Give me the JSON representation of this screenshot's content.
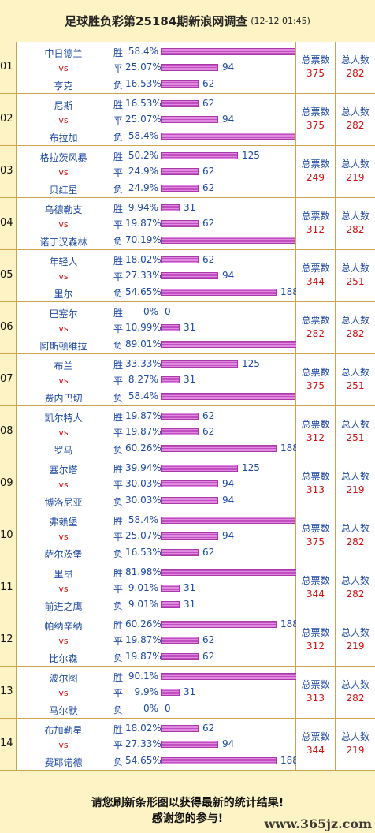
{
  "header": {
    "title": "足球胜负彩第25184期新浪网调查",
    "date": "(12-12 01:45)"
  },
  "labels": {
    "win": "胜",
    "draw": "平",
    "lose": "负",
    "vs": "vs",
    "votes": "总票数",
    "people": "总人数"
  },
  "colors": {
    "bar": "#c04ec0",
    "team": "#1f4aa3",
    "vs": "#d21010",
    "background": "#fdf3c4"
  },
  "matches": [
    {
      "idx": "01",
      "home": "中日德兰",
      "away": "亨克",
      "win": {
        "pct": "58.4%",
        "n": 219
      },
      "draw": {
        "pct": "25.07%",
        "n": 94
      },
      "lose": {
        "pct": "16.53%",
        "n": 62
      },
      "votes": "375",
      "people": "282"
    },
    {
      "idx": "02",
      "home": "尼斯",
      "away": "布拉加",
      "win": {
        "pct": "16.53%",
        "n": 62
      },
      "draw": {
        "pct": "25.07%",
        "n": 94
      },
      "lose": {
        "pct": "58.4%",
        "n": 219
      },
      "votes": "375",
      "people": "282"
    },
    {
      "idx": "03",
      "home": "格拉茨风暴",
      "away": "贝红星",
      "win": {
        "pct": "50.2%",
        "n": 125
      },
      "draw": {
        "pct": "24.9%",
        "n": 62
      },
      "lose": {
        "pct": "24.9%",
        "n": 62
      },
      "votes": "249",
      "people": "219"
    },
    {
      "idx": "04",
      "home": "乌德勒支",
      "away": "诺丁汉森林",
      "win": {
        "pct": "9.94%",
        "n": 31
      },
      "draw": {
        "pct": "19.87%",
        "n": 62
      },
      "lose": {
        "pct": "70.19%",
        "n": 219
      },
      "votes": "312",
      "people": "282"
    },
    {
      "idx": "05",
      "home": "年轻人",
      "away": "里尔",
      "win": {
        "pct": "18.02%",
        "n": 62
      },
      "draw": {
        "pct": "27.33%",
        "n": 94
      },
      "lose": {
        "pct": "54.65%",
        "n": 188
      },
      "votes": "344",
      "people": "251"
    },
    {
      "idx": "06",
      "home": "巴塞尔",
      "away": "阿斯顿维拉",
      "win": {
        "pct": "0%",
        "n": 0
      },
      "draw": {
        "pct": "10.99%",
        "n": 31
      },
      "lose": {
        "pct": "89.01%",
        "n": 251
      },
      "votes": "282",
      "people": "282"
    },
    {
      "idx": "07",
      "home": "布兰",
      "away": "费内巴切",
      "win": {
        "pct": "33.33%",
        "n": 125
      },
      "draw": {
        "pct": "8.27%",
        "n": 31
      },
      "lose": {
        "pct": "58.4%",
        "n": 219
      },
      "votes": "375",
      "people": "251"
    },
    {
      "idx": "08",
      "home": "凯尔特人",
      "away": "罗马",
      "win": {
        "pct": "19.87%",
        "n": 62
      },
      "draw": {
        "pct": "19.87%",
        "n": 62
      },
      "lose": {
        "pct": "60.26%",
        "n": 188
      },
      "votes": "312",
      "people": "251"
    },
    {
      "idx": "09",
      "home": "塞尔塔",
      "away": "博洛尼亚",
      "win": {
        "pct": "39.94%",
        "n": 125
      },
      "draw": {
        "pct": "30.03%",
        "n": 94
      },
      "lose": {
        "pct": "30.03%",
        "n": 94
      },
      "votes": "313",
      "people": "219"
    },
    {
      "idx": "10",
      "home": "弗赖堡",
      "away": "萨尔茨堡",
      "win": {
        "pct": "58.4%",
        "n": 219
      },
      "draw": {
        "pct": "25.07%",
        "n": 94
      },
      "lose": {
        "pct": "16.53%",
        "n": 62
      },
      "votes": "375",
      "people": "282"
    },
    {
      "idx": "11",
      "home": "里昂",
      "away": "前进之鹰",
      "win": {
        "pct": "81.98%",
        "n": 282
      },
      "draw": {
        "pct": "9.01%",
        "n": 31
      },
      "lose": {
        "pct": "9.01%",
        "n": 31
      },
      "votes": "344",
      "people": "282"
    },
    {
      "idx": "12",
      "home": "帕纳辛纳",
      "away": "比尔森",
      "win": {
        "pct": "60.26%",
        "n": 188
      },
      "draw": {
        "pct": "19.87%",
        "n": 62
      },
      "lose": {
        "pct": "19.87%",
        "n": 62
      },
      "votes": "312",
      "people": "219"
    },
    {
      "idx": "13",
      "home": "波尔图",
      "away": "马尔默",
      "win": {
        "pct": "90.1%",
        "n": 282
      },
      "draw": {
        "pct": "9.9%",
        "n": 31
      },
      "lose": {
        "pct": "0%",
        "n": 0
      },
      "votes": "313",
      "people": "282"
    },
    {
      "idx": "14",
      "home": "布加勒星",
      "away": "费耶诺德",
      "win": {
        "pct": "18.02%",
        "n": 62
      },
      "draw": {
        "pct": "27.33%",
        "n": 94
      },
      "lose": {
        "pct": "54.65%",
        "n": 188
      },
      "votes": "344",
      "people": "219"
    }
  ],
  "footer": {
    "line1": "请您刷新条形图以获得最新的统计结果!",
    "line2": "感谢您的参与!",
    "watermark": "www.365jz.com"
  }
}
